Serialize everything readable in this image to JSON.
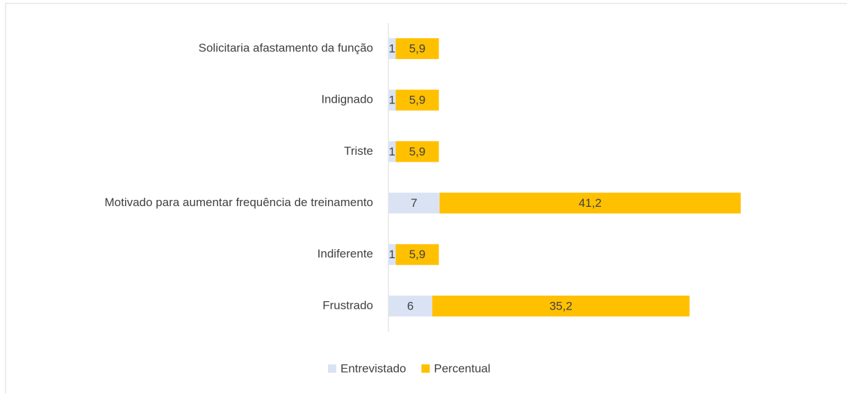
{
  "chart_data": {
    "type": "stacked-barh",
    "categories": [
      "Solicitaria afastamento da função",
      "Indignado",
      "Triste",
      "Motivado para aumentar frequência de treinamento",
      "Indiferente",
      "Frustrado"
    ],
    "series": [
      {
        "name": "Entrevistado",
        "color": "#dae3f3",
        "values": [
          1,
          1,
          1,
          7,
          1,
          6
        ]
      },
      {
        "name": "Percentual",
        "color": "#ffc000",
        "values": [
          5.9,
          5.9,
          5.9,
          41.2,
          5.9,
          35.2
        ],
        "value_labels": [
          "5,9",
          "5,9",
          "5,9",
          "41,2",
          "5,9",
          "35,2"
        ]
      }
    ],
    "legend": "bottom"
  }
}
